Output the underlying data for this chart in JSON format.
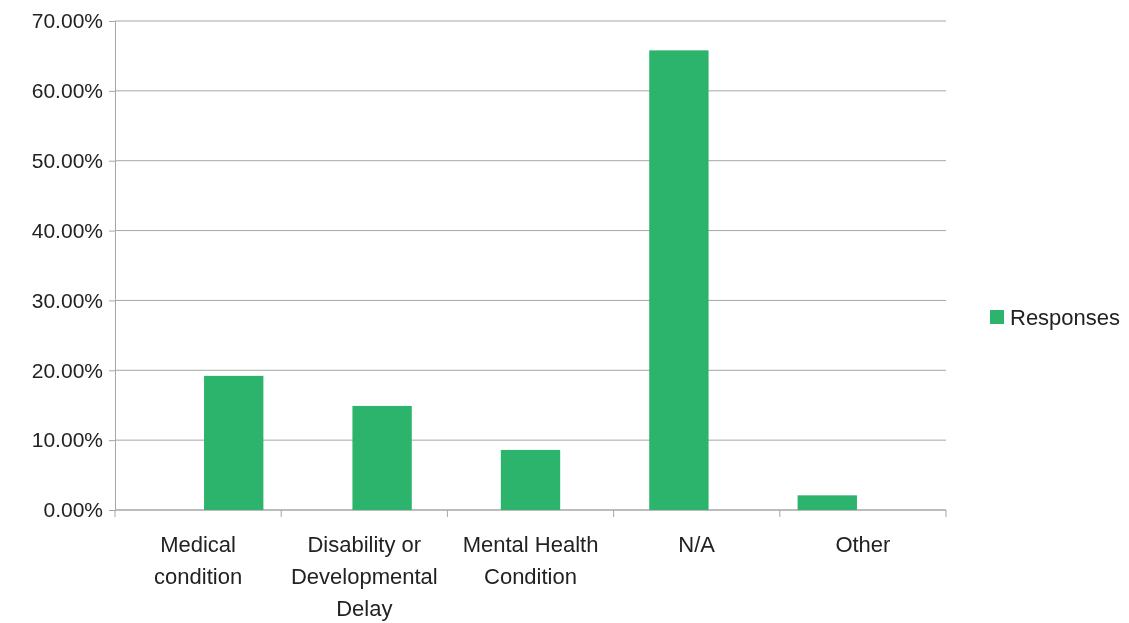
{
  "chart_data": {
    "type": "bar",
    "categories": [
      "Medical condition",
      "Disability or Developmental Delay",
      "Mental Health Condition",
      "N/A",
      "Other"
    ],
    "series": [
      {
        "name": "Responses",
        "color": "#2db46c",
        "values": [
          19.2,
          14.9,
          8.6,
          65.8,
          2.1
        ]
      }
    ],
    "ylim": [
      0,
      70
    ],
    "yticks": [
      {
        "value": 0,
        "label": "0.00%"
      },
      {
        "value": 10,
        "label": "10.00%"
      },
      {
        "value": 20,
        "label": "20.00%"
      },
      {
        "value": 30,
        "label": "30.00%"
      },
      {
        "value": 40,
        "label": "40.00%"
      },
      {
        "value": 50,
        "label": "50.00%"
      },
      {
        "value": 60,
        "label": "60.00%"
      },
      {
        "value": 70,
        "label": "70.00%"
      }
    ],
    "grid": "y",
    "legend": "right"
  }
}
